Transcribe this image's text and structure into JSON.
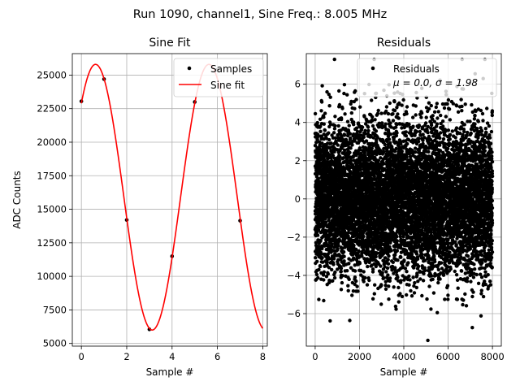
{
  "figure": {
    "suptitle": "Run 1090, channel1, Sine Freq.: 8.005 MHz"
  },
  "chart_data": [
    {
      "type": "scatter",
      "title": "Sine Fit",
      "xlabel": "Sample #",
      "ylabel": "ADC Counts",
      "xlim": [
        -0.4,
        8.2
      ],
      "ylim": [
        4800,
        26600
      ],
      "xticks": [
        0,
        2,
        4,
        6,
        8
      ],
      "yticks": [
        5000,
        7500,
        10000,
        12500,
        15000,
        17500,
        20000,
        22500,
        25000
      ],
      "grid": true,
      "legend": {
        "placement": "top-right",
        "entries": [
          "Samples",
          "Sine fit"
        ]
      },
      "series": [
        {
          "name": "Samples",
          "kind": "scatter",
          "color": "#000000",
          "x": [
            0,
            1,
            2,
            3,
            4,
            5,
            6,
            7
          ],
          "y": [
            23050,
            24700,
            14200,
            6050,
            11500,
            23000,
            25400,
            14150
          ]
        },
        {
          "name": "Sine fit",
          "kind": "line",
          "color": "#ff0000",
          "model": {
            "offset": 15900,
            "amplitude": 9900,
            "period": 5.0,
            "x0": 0.625
          },
          "x_range": [
            0,
            8
          ]
        }
      ]
    },
    {
      "type": "scatter",
      "title": "Residuals",
      "xlabel": "Sample #",
      "ylabel": "",
      "xlim": [
        -400,
        8400
      ],
      "ylim": [
        -7.7,
        7.6
      ],
      "xticks": [
        0,
        2000,
        4000,
        6000,
        8000
      ],
      "yticks": [
        -6,
        -4,
        -2,
        0,
        2,
        4,
        6
      ],
      "grid": true,
      "legend": {
        "placement": "top-right",
        "entries": [
          "Residuals"
        ],
        "stats_label": "μ = 0.0, σ = 1.98"
      },
      "series": [
        {
          "name": "Residuals",
          "kind": "scatter",
          "color": "#000000",
          "n_points": 8000,
          "mean": 0.0,
          "std": 1.98,
          "x_range": [
            0,
            7999
          ]
        }
      ]
    }
  ]
}
